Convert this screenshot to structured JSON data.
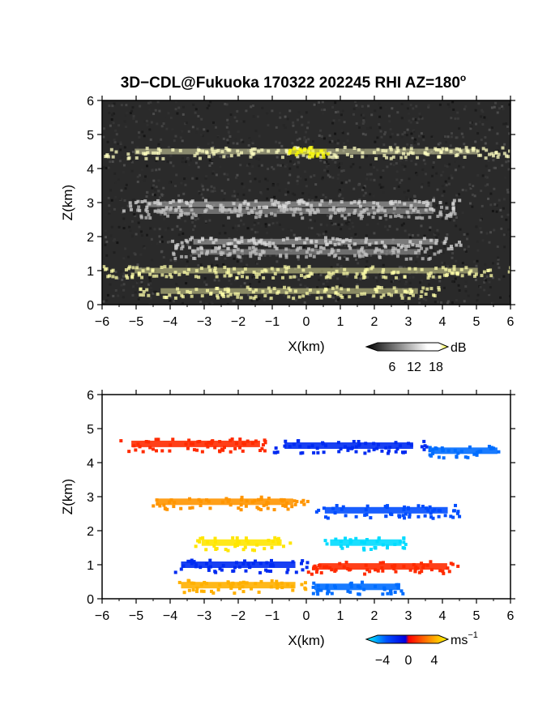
{
  "chart_data": [
    {
      "type": "heatmap",
      "title": "3D−CDL@Fukuoka 170322 202245 RHI AZ=180",
      "title_superscript": "o",
      "xlabel": "X(km)",
      "ylabel": "Z(km)",
      "xlim": [
        -6,
        6
      ],
      "ylim": [
        0,
        6
      ],
      "xticks": [
        "−6",
        "−5",
        "−4",
        "−3",
        "−2",
        "−1",
        "0",
        "1",
        "2",
        "3",
        "4",
        "5",
        "6"
      ],
      "yticks": [
        "0",
        "1",
        "2",
        "3",
        "4",
        "5",
        "6"
      ],
      "variable": "SNR",
      "colorbar": {
        "unit": "dB",
        "ticks": [
          "6",
          "12",
          "18"
        ],
        "range": [
          0,
          21
        ],
        "colors": [
          "#000000",
          "#ffffff",
          "#ffff00"
        ]
      },
      "layers": [
        {
          "z": 4.5,
          "x_range": [
            -6,
            6
          ],
          "value": 13
        },
        {
          "z": 4.5,
          "x_range": [
            -0.6,
            0.7
          ],
          "value": 21,
          "saturated": true
        },
        {
          "z": 2.95,
          "x_range": [
            -5.5,
            4.5
          ],
          "value": 9
        },
        {
          "z": 2.75,
          "x_range": [
            -5,
            4.5
          ],
          "value": 8
        },
        {
          "z": 1.85,
          "x_range": [
            -4,
            4.5
          ],
          "value": 9
        },
        {
          "z": 1.55,
          "x_range": [
            -4,
            4
          ],
          "value": 8
        },
        {
          "z": 1.0,
          "x_range": [
            -6,
            6
          ],
          "value": 14
        },
        {
          "z": 0.4,
          "x_range": [
            -5,
            4
          ],
          "value": 14
        }
      ]
    },
    {
      "type": "heatmap",
      "xlabel": "X(km)",
      "ylabel": "Z(km)",
      "xlim": [
        -6,
        6
      ],
      "ylim": [
        0,
        6
      ],
      "xticks": [
        "−6",
        "−5",
        "−4",
        "−3",
        "−2",
        "−1",
        "0",
        "1",
        "2",
        "3",
        "4",
        "5",
        "6"
      ],
      "yticks": [
        "0",
        "1",
        "2",
        "3",
        "4",
        "5",
        "6"
      ],
      "variable": "Doppler velocity",
      "colorbar": {
        "unit": "ms",
        "unit_superscript": "−1",
        "ticks": [
          "−4",
          "0",
          "4"
        ],
        "range": [
          -6,
          6
        ],
        "colors": [
          "#00ffff",
          "#0050ff",
          "#0000e0",
          "#ff0000",
          "#ff8000",
          "#ffff00"
        ]
      },
      "layers": [
        {
          "z": 4.55,
          "x_range": [
            -5.5,
            -1.0
          ],
          "value": 2.0
        },
        {
          "z": 4.5,
          "x_range": [
            -1.0,
            3.5
          ],
          "value": -2.5
        },
        {
          "z": 4.35,
          "x_range": [
            3.5,
            5.8
          ],
          "value": -4.0
        },
        {
          "z": 2.85,
          "x_range": [
            -4.8,
            0.0
          ],
          "value": 4.0
        },
        {
          "z": 2.6,
          "x_range": [
            0.2,
            4.5
          ],
          "value": -3.5
        },
        {
          "z": 1.65,
          "x_range": [
            -3.3,
            -0.5
          ],
          "value": 5.5
        },
        {
          "z": 1.65,
          "x_range": [
            0.5,
            3.0
          ],
          "value": -5.5
        },
        {
          "z": 1.0,
          "x_range": [
            -4.0,
            0.0
          ],
          "value": -2.5
        },
        {
          "z": 0.95,
          "x_range": [
            0.0,
            4.5
          ],
          "value": 2.0
        },
        {
          "z": 0.4,
          "x_range": [
            -4.0,
            0.0
          ],
          "value": 4.5
        },
        {
          "z": 0.35,
          "x_range": [
            0.0,
            3.0
          ],
          "value": -4.0
        }
      ]
    }
  ]
}
